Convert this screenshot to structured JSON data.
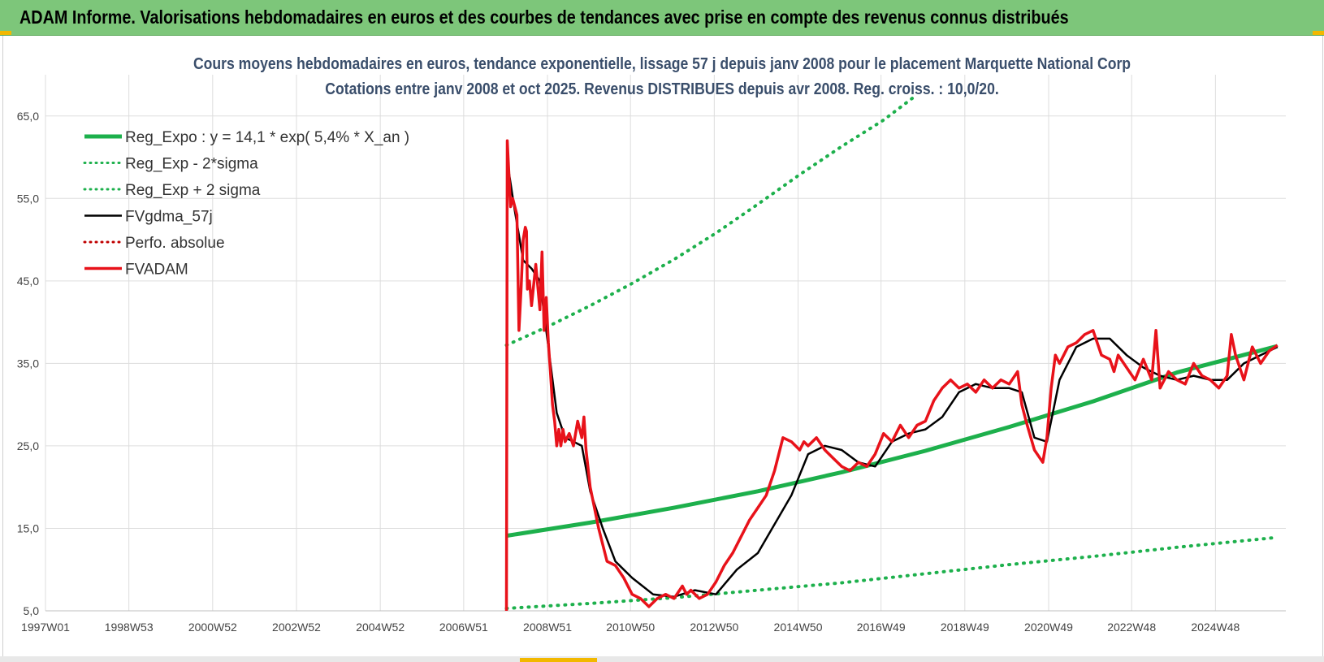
{
  "header": {
    "title": "ADAM Informe. Valorisations hebdomadaires en euros et des courbes de tendances avec prise en compte des revenus connus distribués"
  },
  "colors": {
    "header_bg": "#7dc67a",
    "reg_expo": "#1db04c",
    "sigma": "#1db04c",
    "fvgdma": "#000000",
    "perfo": "#c00000",
    "fvadam": "#e8121a",
    "grid": "#dddddd"
  },
  "chart_data": {
    "type": "line",
    "title": "Cours moyens hebdomadaires en euros, tendance exponentielle, lissage 57 j depuis janv 2008 pour le placement Marquette National Corp",
    "subtitle": "Cotations entre janv 2008 et oct 2025. Revenus DISTRIBUES depuis avr 2008. Reg. croiss. : 10,0/20.",
    "xlabel": "",
    "ylabel": "",
    "ylim": [
      5,
      70
    ],
    "xlim": [
      1997.0,
      2026.6
    ],
    "y_ticks": [
      5,
      15,
      25,
      35,
      45,
      55,
      65
    ],
    "y_tick_labels": [
      "5,0",
      "15,0",
      "25,0",
      "35,0",
      "45,0",
      "55,0",
      "65,0"
    ],
    "x_ticks": [
      {
        "label": "1997W01",
        "x": 1997.0
      },
      {
        "label": "1998W53",
        "x": 1998.99
      },
      {
        "label": "2000W52",
        "x": 2000.99
      },
      {
        "label": "2002W52",
        "x": 2002.99
      },
      {
        "label": "2004W52",
        "x": 2004.99
      },
      {
        "label": "2006W51",
        "x": 2006.98
      },
      {
        "label": "2008W51",
        "x": 2008.98
      },
      {
        "label": "2010W50",
        "x": 2010.96
      },
      {
        "label": "2012W50",
        "x": 2012.96
      },
      {
        "label": "2014W50",
        "x": 2014.96
      },
      {
        "label": "2016W49",
        "x": 2016.94
      },
      {
        "label": "2018W49",
        "x": 2018.94
      },
      {
        "label": "2020W49",
        "x": 2020.94
      },
      {
        "label": "2022W48",
        "x": 2022.92
      },
      {
        "label": "2024W48",
        "x": 2024.92
      }
    ],
    "grid": true,
    "legend_position": "top-left",
    "series": [
      {
        "name": "Reg_Expo : y = 14,1 * exp( 5,4% *  X_an )",
        "style": "solid-thick",
        "color": "#1db04c",
        "x": [
          2008.0,
          2010.0,
          2012.0,
          2014.0,
          2016.0,
          2018.0,
          2020.0,
          2022.0,
          2024.0,
          2026.4
        ],
        "y": [
          14.1,
          15.7,
          17.5,
          19.5,
          21.8,
          24.4,
          27.3,
          30.4,
          33.9,
          37.1
        ]
      },
      {
        "name": "Reg_Exp - 2*sigma",
        "style": "dotted",
        "color": "#1db04c",
        "x": [
          2008.0,
          2010.0,
          2012.0,
          2014.0,
          2016.0,
          2018.0,
          2020.0,
          2022.0,
          2024.0,
          2026.4
        ],
        "y": [
          5.3,
          5.9,
          6.6,
          7.5,
          8.4,
          9.5,
          10.6,
          11.6,
          12.7,
          13.9
        ]
      },
      {
        "name": "Reg_Exp + 2 sigma",
        "style": "dotted",
        "color": "#1db04c",
        "x": [
          2008.0,
          2009.0,
          2010.0,
          2011.0,
          2012.0,
          2013.0,
          2014.0,
          2015.0,
          2016.0,
          2017.0,
          2017.7
        ],
        "y": [
          37.2,
          39.5,
          42.0,
          44.7,
          47.6,
          50.8,
          54.3,
          57.9,
          61.3,
          64.5,
          67.2
        ]
      },
      {
        "name": "FVgdma_57j",
        "style": "solid",
        "color": "#000000",
        "x": [
          2008.05,
          2008.2,
          2008.4,
          2008.6,
          2008.8,
          2009.0,
          2009.2,
          2009.4,
          2009.6,
          2009.8,
          2010.0,
          2010.3,
          2010.6,
          2011.0,
          2011.5,
          2012.0,
          2012.5,
          2013.0,
          2013.5,
          2014.0,
          2014.4,
          2014.8,
          2015.2,
          2015.6,
          2016.0,
          2016.4,
          2016.8,
          2017.2,
          2017.6,
          2018.0,
          2018.4,
          2018.8,
          2019.2,
          2019.6,
          2020.0,
          2020.3,
          2020.6,
          2020.9,
          2021.2,
          2021.6,
          2022.0,
          2022.4,
          2022.8,
          2023.2,
          2023.6,
          2024.0,
          2024.4,
          2024.8,
          2025.2,
          2025.6,
          2026.0,
          2026.4
        ],
        "y": [
          58.5,
          53.5,
          47.5,
          46.5,
          45.0,
          37.0,
          29.0,
          26.0,
          25.5,
          25.0,
          19.5,
          15.0,
          11.0,
          9.0,
          7.0,
          6.7,
          7.5,
          7.0,
          10.0,
          12.0,
          15.5,
          19.0,
          24.0,
          25.0,
          24.5,
          23.0,
          22.5,
          25.5,
          26.5,
          27.0,
          28.5,
          31.5,
          32.5,
          32.0,
          32.0,
          31.5,
          26.0,
          25.5,
          33.0,
          37.0,
          38.0,
          38.0,
          36.0,
          34.5,
          33.5,
          33.0,
          33.5,
          33.0,
          33.0,
          35.0,
          36.0,
          37.0
        ]
      },
      {
        "name": "Perfo. absolue",
        "style": "dotted",
        "color": "#c00000",
        "x": [],
        "y": []
      },
      {
        "name": "FVADAM",
        "style": "solid-thick",
        "color": "#e8121a",
        "x": [
          2008.0,
          2008.02,
          2008.05,
          2008.1,
          2008.15,
          2008.25,
          2008.3,
          2008.35,
          2008.4,
          2008.45,
          2008.48,
          2008.5,
          2008.55,
          2008.6,
          2008.7,
          2008.8,
          2008.85,
          2008.9,
          2008.95,
          2009.0,
          2009.05,
          2009.1,
          2009.15,
          2009.2,
          2009.25,
          2009.3,
          2009.35,
          2009.4,
          2009.5,
          2009.6,
          2009.7,
          2009.8,
          2009.85,
          2009.9,
          2010.0,
          2010.2,
          2010.4,
          2010.6,
          2010.8,
          2011.0,
          2011.2,
          2011.4,
          2011.6,
          2011.8,
          2012.0,
          2012.2,
          2012.3,
          2012.4,
          2012.6,
          2012.8,
          2013.0,
          2013.2,
          2013.4,
          2013.6,
          2013.8,
          2014.0,
          2014.2,
          2014.4,
          2014.6,
          2014.8,
          2015.0,
          2015.1,
          2015.2,
          2015.4,
          2015.6,
          2015.8,
          2016.0,
          2016.2,
          2016.4,
          2016.6,
          2016.8,
          2017.0,
          2017.2,
          2017.4,
          2017.6,
          2017.8,
          2018.0,
          2018.2,
          2018.4,
          2018.6,
          2018.8,
          2019.0,
          2019.2,
          2019.4,
          2019.6,
          2019.8,
          2020.0,
          2020.2,
          2020.3,
          2020.4,
          2020.6,
          2020.8,
          2020.9,
          2021.0,
          2021.1,
          2021.2,
          2021.4,
          2021.6,
          2021.8,
          2022.0,
          2022.2,
          2022.4,
          2022.5,
          2022.6,
          2022.8,
          2023.0,
          2023.2,
          2023.4,
          2023.5,
          2023.6,
          2023.8,
          2024.0,
          2024.2,
          2024.4,
          2024.6,
          2024.8,
          2025.0,
          2025.2,
          2025.3,
          2025.4,
          2025.6,
          2025.8,
          2026.0,
          2026.2,
          2026.4
        ],
        "y": [
          5.0,
          62.0,
          59.0,
          54.0,
          55.0,
          53.0,
          39.0,
          44.0,
          50.0,
          51.5,
          51.0,
          44.0,
          45.0,
          42.0,
          47.0,
          41.5,
          48.5,
          39.0,
          43.0,
          37.5,
          34.0,
          30.0,
          28.0,
          25.0,
          27.0,
          25.0,
          27.0,
          25.5,
          26.5,
          25.0,
          28.0,
          26.0,
          28.5,
          24.5,
          20.0,
          15.0,
          11.0,
          10.5,
          9.0,
          7.0,
          6.5,
          5.5,
          6.5,
          7.0,
          6.5,
          8.0,
          7.0,
          7.5,
          6.5,
          7.0,
          8.5,
          10.5,
          12.0,
          14.0,
          16.0,
          17.5,
          19.0,
          22.0,
          26.0,
          25.5,
          24.5,
          25.5,
          25.0,
          26.0,
          24.5,
          23.5,
          22.5,
          22.0,
          23.0,
          22.5,
          24.0,
          26.5,
          25.5,
          27.5,
          26.0,
          27.5,
          28.0,
          30.5,
          32.0,
          33.0,
          32.0,
          32.5,
          31.5,
          33.0,
          32.0,
          33.0,
          32.5,
          34.0,
          30.0,
          28.0,
          24.5,
          23.0,
          26.0,
          32.0,
          36.0,
          35.0,
          37.0,
          37.5,
          38.5,
          39.0,
          36.0,
          35.5,
          34.0,
          36.0,
          34.5,
          33.0,
          35.5,
          33.0,
          39.0,
          32.0,
          34.0,
          33.0,
          32.5,
          35.0,
          33.5,
          33.0,
          32.0,
          33.5,
          38.5,
          36.0,
          33.0,
          37.0,
          35.0,
          36.5,
          37.2
        ]
      }
    ]
  }
}
